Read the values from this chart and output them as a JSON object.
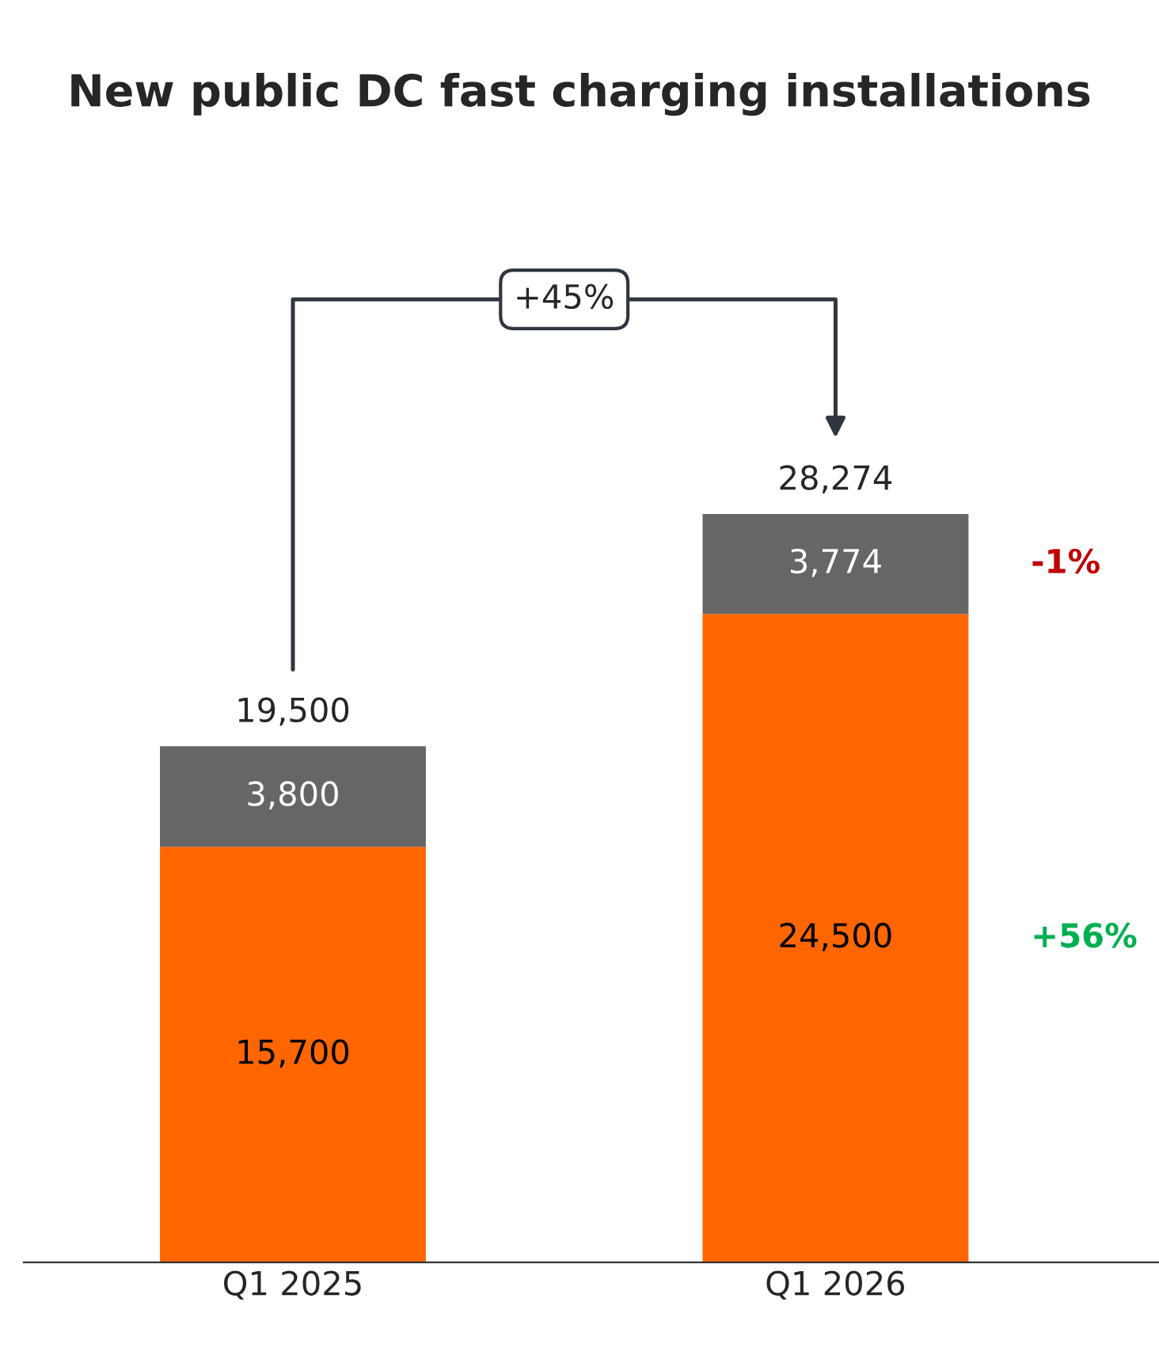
{
  "chart_data": {
    "type": "bar",
    "title": "New public DC fast charging installations",
    "categories": [
      "Q1 2025",
      "Q1 2026"
    ],
    "stacked": true,
    "series": [
      {
        "color": "#ff6600",
        "values": [
          15700,
          24500
        ],
        "value_labels": [
          "15,700",
          "24,500"
        ]
      },
      {
        "color": "#666666",
        "values": [
          3800,
          3774
        ],
        "value_labels": [
          "3,800",
          "3,774"
        ]
      }
    ],
    "totals": [
      "19,500",
      "28,274"
    ],
    "tick_labels": "x",
    "grid": false,
    "legend": false,
    "annotations": [
      "+45%",
      "-1%",
      "+56%"
    ]
  }
}
